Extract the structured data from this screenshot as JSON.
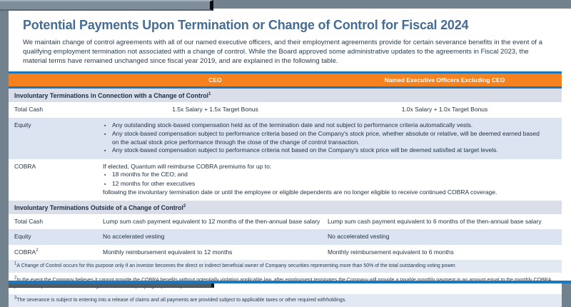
{
  "slide": {
    "title": "Potential Payments Upon Termination or Change of Control for Fiscal 2024",
    "intro": "We maintain change of control agreements with all of our named executive officers, and their employment agreements provide for certain severance benefits in the event of a qualifying employment termination not associated with a change of control.  While the Board approved some administrative updates to the agreements in Fiscal 2023, the material terms have remained unchanged since fiscal year 2019, and are explained in the following table."
  },
  "glyphs": {
    "bullet": "▪"
  },
  "colors": {
    "accent_orange": "#F5821F",
    "accent_blue": "#1C77BE",
    "title_blue": "#456C94",
    "section_header_bg": "#D9DEE9",
    "alt_row_bg": "#DBE4F0",
    "footnote_bg": "#E3E9F3"
  },
  "table": {
    "col_ceo": "CEO",
    "col_neo": "Named Executive Officers Excluding CEO",
    "s1": {
      "title": "Involuntary Terminations in Connection with a Change of Control",
      "sup": "1",
      "total_cash_label": "Total Cash",
      "total_cash_ceo": "1.5x Salary + 1.5x Target Bonus",
      "total_cash_neo": "1.0x Salary + 1.0x Target Bonus",
      "equity_label": "Equity",
      "equity_bullets": [
        "Any outstanding stock-based compensation held as of the termination date and not subject to performance criteria automatically vests.",
        "Any stock-based compensation subject to performance criteria based on the Company's stock price, whether absolute or relative, will be deemed earned based on the actual stock price performance through the close of the change of control transaction.",
        "Any stock-based compensation subject to performance criteria not based on the Company's stock price will be deemed satisfied at target levels."
      ],
      "cobra_label": "COBRA",
      "cobra_intro": "If elected, Quantum will reimburse COBRA premiums for up to:",
      "cobra_bullets": [
        "18 months for the CEO; and",
        "12 months for other executives"
      ],
      "cobra_outro": "following the involuntary termination date or until the employee or eligible dependents are no longer eligible to receive continued COBRA coverage."
    },
    "s2": {
      "title": "Involuntary Terminations Outside of a Change of Control",
      "sup": "2",
      "total_cash_label": "Total Cash",
      "total_cash_ceo": "Lump sum cash payment equivalent to 12 months of the then-annual base salary",
      "total_cash_neo": "Lump sum cash payment equivalent to 6 months of the then-annual base salary",
      "equity_label": "Equity",
      "equity_ceo": "No accelerated vesting",
      "equity_neo": "No accelerated vesting",
      "cobra_label": "COBRA",
      "cobra_sup": "2",
      "cobra_ceo": "Monthly reimbursement equivalent to 12 months",
      "cobra_neo": "Monthly reimbursement equivalent to 6 months"
    }
  },
  "footnotes": [
    {
      "sup": "1",
      "text": "A Change of Control occurs for this purpose only if an investor becomes the direct or indirect beneficial owner of Company securities representing more than 50% of the total outstanding voting power."
    },
    {
      "sup": "2",
      "text": "In the event the Company believes it cannot provide the COBRA benefits without potentially violating applicable law, after employment terminates the Company will provide a taxable monthly payment in an amount equal to the monthly COBRA premium required to continue coverage under the Company's group health plan."
    },
    {
      "sup": "3",
      "text": "The severance is subject to entering into a release of claims and all payments are provided subject to applicable taxes or other required withholdings."
    }
  ]
}
